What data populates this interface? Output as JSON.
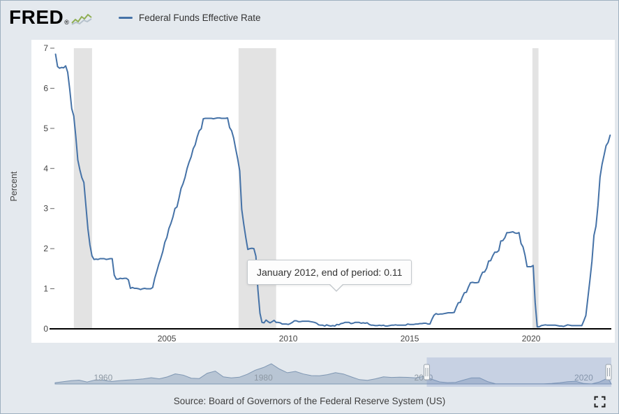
{
  "header": {
    "logo_text": "FRED",
    "registered_mark": "®"
  },
  "footer": {
    "source": "Source: Board of Governors of the Federal Reserve System (US)"
  },
  "chart_data": {
    "type": "line",
    "title": "Federal Funds Effective Rate",
    "ylabel": "Percent",
    "ylim": [
      0,
      7
    ],
    "xlim": [
      2000.4,
      2023.3
    ],
    "y_ticks": [
      0,
      1,
      2,
      3,
      4,
      5,
      6,
      7
    ],
    "x_ticks": [
      2005,
      2010,
      2015,
      2020
    ],
    "x_tick_labels": [
      "2005",
      "2010",
      "2015",
      "2020"
    ],
    "line_color": "#4572a7",
    "recession_color": "#e3e3e3",
    "recession_bands": [
      {
        "from": 2001.17,
        "to": 2001.92
      },
      {
        "from": 2007.95,
        "to": 2009.5
      },
      {
        "from": 2020.05,
        "to": 2020.3
      }
    ],
    "tooltip": {
      "label": "January 2012, end of period:",
      "value": "0.11",
      "x": 2012.0,
      "y": 0.11
    },
    "series": [
      {
        "name": "Federal Funds Effective Rate",
        "frequency": "monthly",
        "aggregation": "end of period",
        "start_year": 2000,
        "start_month": 6,
        "values": [
          6.85,
          6.54,
          6.5,
          6.52,
          6.51,
          6.56,
          6.4,
          5.98,
          5.49,
          5.31,
          4.8,
          4.21,
          3.97,
          3.77,
          3.65,
          3.07,
          2.49,
          2.09,
          1.82,
          1.73,
          1.74,
          1.73,
          1.75,
          1.75,
          1.75,
          1.73,
          1.74,
          1.75,
          1.75,
          1.34,
          1.24,
          1.24,
          1.26,
          1.25,
          1.26,
          1.26,
          1.22,
          1.01,
          1.03,
          1.01,
          1.01,
          1.0,
          0.98,
          1.0,
          1.01,
          1.0,
          1.0,
          1.0,
          1.03,
          1.26,
          1.43,
          1.61,
          1.76,
          1.93,
          2.16,
          2.28,
          2.5,
          2.63,
          2.79,
          3.0,
          3.04,
          3.26,
          3.5,
          3.62,
          3.78,
          4.0,
          4.16,
          4.29,
          4.49,
          4.59,
          4.79,
          4.94,
          4.99,
          5.24,
          5.25,
          5.25,
          5.25,
          5.25,
          5.24,
          5.25,
          5.26,
          5.26,
          5.25,
          5.25,
          5.25,
          5.26,
          5.02,
          4.94,
          4.76,
          4.49,
          4.24,
          3.94,
          2.98,
          2.61,
          2.28,
          1.98,
          2.0,
          2.01,
          2.0,
          1.81,
          0.97,
          0.39,
          0.16,
          0.15,
          0.22,
          0.18,
          0.15,
          0.18,
          0.21,
          0.16,
          0.16,
          0.15,
          0.12,
          0.12,
          0.12,
          0.11,
          0.13,
          0.16,
          0.2,
          0.2,
          0.18,
          0.18,
          0.19,
          0.19,
          0.19,
          0.19,
          0.18,
          0.17,
          0.16,
          0.14,
          0.1,
          0.09,
          0.09,
          0.07,
          0.1,
          0.08,
          0.07,
          0.08,
          0.07,
          0.11,
          0.1,
          0.13,
          0.14,
          0.16,
          0.16,
          0.16,
          0.13,
          0.14,
          0.16,
          0.16,
          0.16,
          0.14,
          0.15,
          0.14,
          0.15,
          0.11,
          0.09,
          0.09,
          0.08,
          0.08,
          0.09,
          0.08,
          0.09,
          0.07,
          0.07,
          0.08,
          0.09,
          0.09,
          0.1,
          0.09,
          0.09,
          0.09,
          0.09,
          0.09,
          0.12,
          0.11,
          0.11,
          0.11,
          0.12,
          0.12,
          0.13,
          0.13,
          0.14,
          0.14,
          0.12,
          0.12,
          0.24,
          0.34,
          0.38,
          0.36,
          0.37,
          0.37,
          0.38,
          0.39,
          0.4,
          0.4,
          0.4,
          0.41,
          0.54,
          0.65,
          0.66,
          0.79,
          0.9,
          0.91,
          1.04,
          1.15,
          1.16,
          1.15,
          1.15,
          1.16,
          1.3,
          1.41,
          1.42,
          1.51,
          1.69,
          1.7,
          1.82,
          1.91,
          1.91,
          1.95,
          2.19,
          2.2,
          2.27,
          2.4,
          2.4,
          2.41,
          2.42,
          2.39,
          2.38,
          2.4,
          2.13,
          2.04,
          1.83,
          1.55,
          1.55,
          1.55,
          1.58,
          0.65,
          0.05,
          0.05,
          0.08,
          0.09,
          0.1,
          0.09,
          0.09,
          0.09,
          0.09,
          0.09,
          0.08,
          0.07,
          0.07,
          0.06,
          0.08,
          0.1,
          0.09,
          0.08,
          0.08,
          0.08,
          0.08,
          0.08,
          0.08,
          0.2,
          0.33,
          0.77,
          1.21,
          1.68,
          2.33,
          2.56,
          3.08,
          3.78,
          4.1,
          4.33,
          4.57,
          4.65,
          4.83
        ]
      }
    ],
    "navigator": {
      "xlim": [
        1954,
        2023.45
      ],
      "ymax": 17,
      "labels": [
        "1960",
        "1980",
        "2000",
        "2020"
      ],
      "label_positions": [
        1960,
        1980,
        2000,
        2020
      ],
      "selected": [
        2000.4,
        2023.45
      ],
      "series": {
        "frequency": "annual",
        "start": 1954,
        "values": [
          1.0,
          1.8,
          2.7,
          3.1,
          1.6,
          3.3,
          3.2,
          2.0,
          2.7,
          3.2,
          3.5,
          4.1,
          5.1,
          4.2,
          5.7,
          8.2,
          7.2,
          4.7,
          4.4,
          8.7,
          10.5,
          5.8,
          5.0,
          5.5,
          7.9,
          11.2,
          13.4,
          16.4,
          12.2,
          9.1,
          10.2,
          8.1,
          6.8,
          6.7,
          7.6,
          9.2,
          8.1,
          5.7,
          3.5,
          3.0,
          4.2,
          5.8,
          5.3,
          5.5,
          5.4,
          5.0,
          6.2,
          3.9,
          1.7,
          1.1,
          1.3,
          3.2,
          5.0,
          5.0,
          1.9,
          0.16,
          0.18,
          0.1,
          0.14,
          0.11,
          0.09,
          0.13,
          0.4,
          1.0,
          1.8,
          2.2,
          0.4,
          0.08,
          1.7,
          4.8
        ]
      }
    }
  }
}
